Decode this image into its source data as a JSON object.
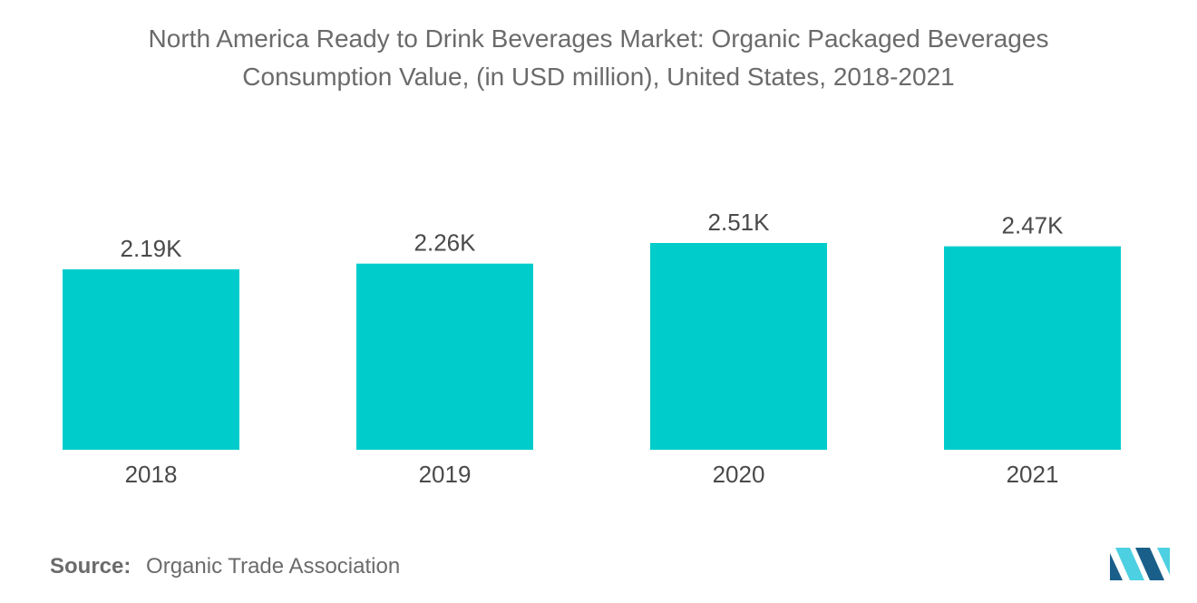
{
  "chart_data": {
    "type": "bar",
    "title_lines": [
      "North America Ready to Drink Beverages Market: Organic Packaged Beverages",
      "Consumption Value, (in USD million), United States, 2018-2021"
    ],
    "categories": [
      "2018",
      "2019",
      "2020",
      "2021"
    ],
    "values": [
      2190,
      2260,
      2510,
      2470
    ],
    "data_labels": [
      "2.19K",
      "2.26K",
      "2.51K",
      "2.47K"
    ],
    "xlabel": "",
    "ylabel": "",
    "ylim": [
      0,
      2510
    ],
    "grid": false,
    "legend": "none",
    "bar_color": "#00cccc"
  },
  "source": {
    "label": "Source:",
    "text": "Organic Trade Association"
  },
  "logo": {
    "icon": "mordor-intelligence-logo-icon",
    "color_light": "#4dd0e1",
    "color_dark": "#1a5f8a"
  }
}
